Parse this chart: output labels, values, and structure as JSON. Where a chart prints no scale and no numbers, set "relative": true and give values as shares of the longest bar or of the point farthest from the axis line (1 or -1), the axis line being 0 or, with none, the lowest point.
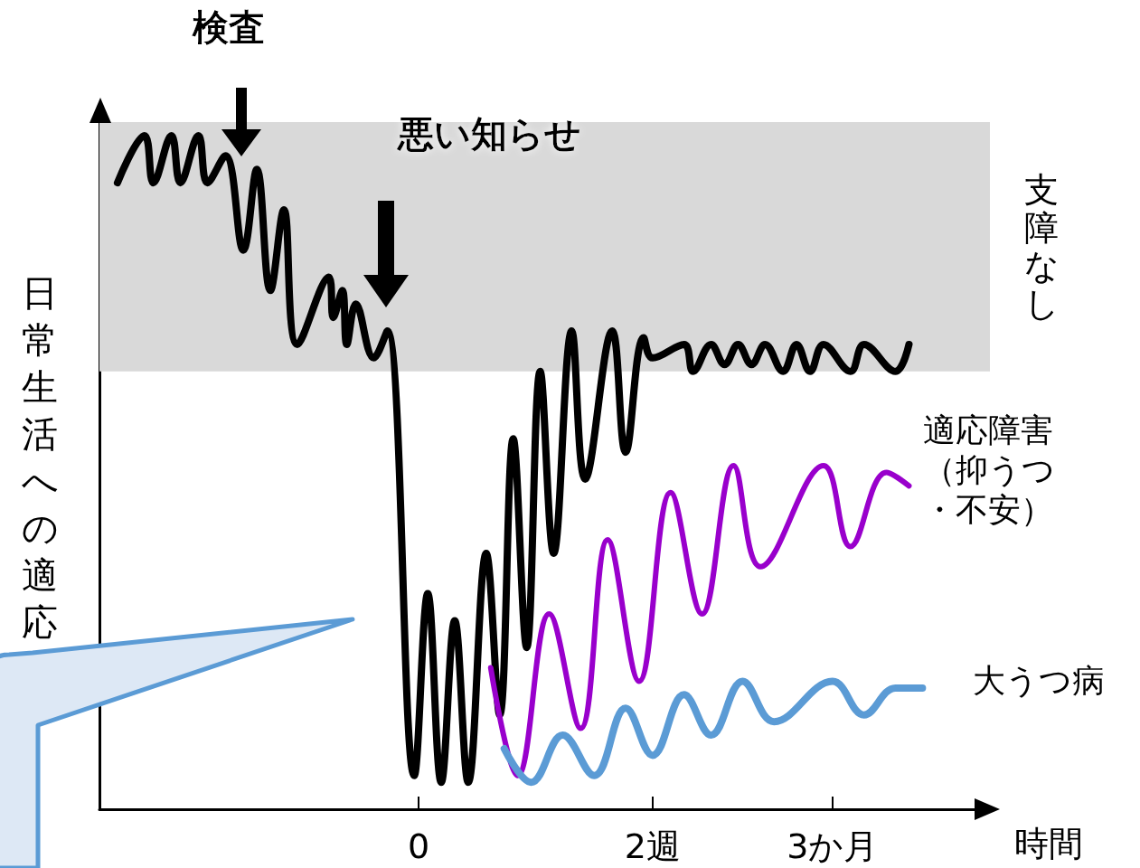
{
  "chart_data": {
    "type": "line",
    "relative": true,
    "marker": "none",
    "line_style": "solid",
    "ylabel": "日常生活への適応",
    "xlabel": "時間",
    "annotations": [
      "検査",
      "悪い知らせ"
    ],
    "bands": [
      {
        "axis": "y",
        "from": 0.65,
        "to": 1.02,
        "label": "支障なし",
        "color": "#d9d9d9"
      }
    ],
    "categories": [
      null,
      null,
      null,
      null,
      null,
      null,
      null,
      null,
      null,
      null,
      null,
      null,
      null,
      null,
      null,
      null,
      null,
      null,
      null,
      null,
      null,
      null,
      null,
      null,
      null,
      null,
      null,
      null,
      null,
      null,
      null,
      null,
      null,
      null,
      null,
      null,
      null,
      null,
      null,
      null,
      null,
      null,
      null,
      null,
      null,
      null,
      null,
      null,
      null,
      null,
      null,
      null,
      null,
      null,
      null,
      null,
      null,
      null,
      null,
      null,
      null,
      null,
      null,
      null,
      null,
      null,
      null,
      null,
      null,
      null,
      null,
      "0",
      null,
      null,
      null,
      null,
      null,
      null,
      null,
      null,
      null,
      null,
      null,
      null,
      null,
      null,
      null,
      null,
      null,
      null,
      null,
      null,
      null,
      null,
      null,
      null,
      null,
      null,
      null,
      null,
      null,
      null,
      null,
      null,
      null,
      null,
      null,
      null,
      null,
      null,
      null,
      null,
      null,
      null,
      null,
      null,
      null,
      null,
      null,
      null,
      null,
      null,
      null,
      "2週",
      null,
      null,
      null,
      null,
      null,
      null,
      null,
      null,
      null,
      null,
      null,
      null,
      null,
      null,
      null,
      null,
      null,
      null,
      null,
      null,
      null,
      null,
      null,
      null,
      null,
      null,
      null,
      null,
      null,
      null,
      null,
      null,
      null,
      null,
      null,
      null,
      null,
      null,
      null,
      "3か月",
      null,
      null,
      null,
      null,
      null,
      null,
      null,
      null,
      null,
      null,
      null,
      null,
      null,
      null,
      null,
      null,
      null,
      null,
      null,
      null,
      null,
      null,
      null,
      null,
      null,
      null,
      null,
      null,
      null,
      null,
      null,
      null,
      null,
      null,
      null
    ],
    "series": [
      {
        "color": "#000000",
        "values": [
          null,
          null,
          null,
          null,
          0.93,
          null,
          null,
          null,
          null,
          null,
          1.0,
          null,
          0.93,
          null,
          null,
          null,
          1.0,
          null,
          0.93,
          null,
          null,
          null,
          1.0,
          null,
          0.93,
          null,
          null,
          null,
          0.97,
          null,
          null,
          null,
          0.83,
          null,
          null,
          0.95,
          null,
          null,
          0.77,
          null,
          null,
          0.89,
          null,
          null,
          0.69,
          null,
          null,
          null,
          null,
          null,
          null,
          0.79,
          0.73,
          null,
          0.77,
          0.69,
          null,
          0.75,
          null,
          null,
          null,
          0.67,
          null,
          null,
          0.71,
          null,
          null,
          null,
          null,
          null,
          0.05,
          null,
          null,
          0.32,
          null,
          null,
          0.04,
          null,
          null,
          0.28,
          null,
          null,
          0.04,
          null,
          null,
          null,
          0.38,
          null,
          null,
          0.14,
          null,
          null,
          0.55,
          null,
          null,
          0.24,
          null,
          null,
          0.65,
          null,
          null,
          0.38,
          null,
          null,
          null,
          0.71,
          null,
          null,
          0.49,
          null,
          null,
          null,
          null,
          null,
          0.71,
          null,
          null,
          0.53,
          null,
          null,
          null,
          0.7,
          null,
          0.67,
          null,
          null,
          null,
          null,
          null,
          null,
          0.69,
          null,
          0.65,
          null,
          null,
          null,
          0.69,
          null,
          null,
          0.66,
          null,
          null,
          0.69,
          null,
          null,
          0.66,
          null,
          null,
          0.69,
          null,
          null,
          null,
          0.65,
          null,
          null,
          0.69,
          null,
          null,
          0.65,
          null,
          null,
          0.69,
          null,
          null,
          null,
          null,
          null,
          0.65,
          null,
          null,
          0.69,
          null,
          null,
          null,
          null,
          null,
          null,
          0.65,
          null,
          null,
          0.69,
          null,
          null,
          null,
          null,
          null,
          null,
          null,
          null,
          null,
          null,
          null,
          null,
          null,
          null,
          null,
          null,
          null,
          null
        ]
      },
      {
        "name": "適応障害（抑うつ・不安）",
        "color": "#9900cc",
        "values": [
          null,
          null,
          null,
          null,
          null,
          null,
          null,
          null,
          null,
          null,
          null,
          null,
          null,
          null,
          null,
          null,
          null,
          null,
          null,
          null,
          null,
          null,
          null,
          null,
          null,
          null,
          null,
          null,
          null,
          null,
          null,
          null,
          null,
          null,
          null,
          null,
          null,
          null,
          null,
          null,
          null,
          null,
          null,
          null,
          null,
          null,
          null,
          null,
          null,
          null,
          null,
          null,
          null,
          null,
          null,
          null,
          null,
          null,
          null,
          null,
          null,
          null,
          null,
          null,
          null,
          null,
          null,
          null,
          null,
          null,
          null,
          null,
          null,
          null,
          null,
          null,
          null,
          null,
          null,
          null,
          null,
          null,
          null,
          null,
          null,
          null,
          null,
          0.21,
          null,
          null,
          null,
          null,
          null,
          0.05,
          null,
          null,
          null,
          null,
          null,
          null,
          0.29,
          null,
          null,
          null,
          null,
          null,
          null,
          0.12,
          null,
          null,
          null,
          null,
          null,
          0.4,
          null,
          null,
          null,
          null,
          null,
          null,
          0.19,
          null,
          null,
          null,
          null,
          null,
          null,
          0.47,
          null,
          null,
          null,
          null,
          null,
          null,
          0.29,
          null,
          null,
          null,
          null,
          null,
          null,
          0.51,
          null,
          null,
          null,
          null,
          null,
          0.36,
          null,
          null,
          null,
          null,
          null,
          null,
          null,
          null,
          null,
          null,
          null,
          null,
          null,
          0.51,
          null,
          null,
          null,
          null,
          null,
          0.39,
          null,
          null,
          null,
          null,
          null,
          null,
          null,
          0.5,
          null,
          null,
          null,
          null,
          0.48,
          null,
          null,
          null,
          null,
          null,
          null,
          null,
          null,
          null,
          null,
          null,
          null,
          null,
          null,
          null,
          null,
          null,
          null
        ]
      },
      {
        "name": "大うつ病",
        "color": "#5b9bd5",
        "values": [
          null,
          null,
          null,
          null,
          null,
          null,
          null,
          null,
          null,
          null,
          null,
          null,
          null,
          null,
          null,
          null,
          null,
          null,
          null,
          null,
          null,
          null,
          null,
          null,
          null,
          null,
          null,
          null,
          null,
          null,
          null,
          null,
          null,
          null,
          null,
          null,
          null,
          null,
          null,
          null,
          null,
          null,
          null,
          null,
          null,
          null,
          null,
          null,
          null,
          null,
          null,
          null,
          null,
          null,
          null,
          null,
          null,
          null,
          null,
          null,
          null,
          null,
          null,
          null,
          null,
          null,
          null,
          null,
          null,
          null,
          null,
          null,
          null,
          null,
          null,
          null,
          null,
          null,
          null,
          null,
          null,
          null,
          null,
          null,
          null,
          null,
          null,
          null,
          null,
          null,
          0.09,
          null,
          null,
          null,
          null,
          null,
          0.04,
          null,
          null,
          null,
          null,
          null,
          null,
          0.11,
          null,
          null,
          null,
          null,
          null,
          null,
          0.05,
          null,
          null,
          null,
          null,
          null,
          null,
          0.15,
          null,
          null,
          null,
          null,
          null,
          0.08,
          null,
          null,
          null,
          null,
          null,
          null,
          0.17,
          null,
          null,
          null,
          null,
          null,
          0.11,
          null,
          null,
          null,
          null,
          null,
          null,
          0.19,
          null,
          null,
          null,
          null,
          null,
          null,
          0.13,
          null,
          null,
          null,
          null,
          null,
          null,
          null,
          null,
          null,
          null,
          null,
          null,
          0.19,
          null,
          null,
          null,
          null,
          null,
          null,
          0.14,
          null,
          null,
          null,
          null,
          null,
          null,
          0.18,
          null,
          null,
          null,
          null,
          null,
          0.18,
          null,
          null,
          null,
          null,
          null,
          null,
          null,
          null,
          null,
          null,
          null,
          null,
          null,
          null,
          null
        ]
      }
    ]
  }
}
